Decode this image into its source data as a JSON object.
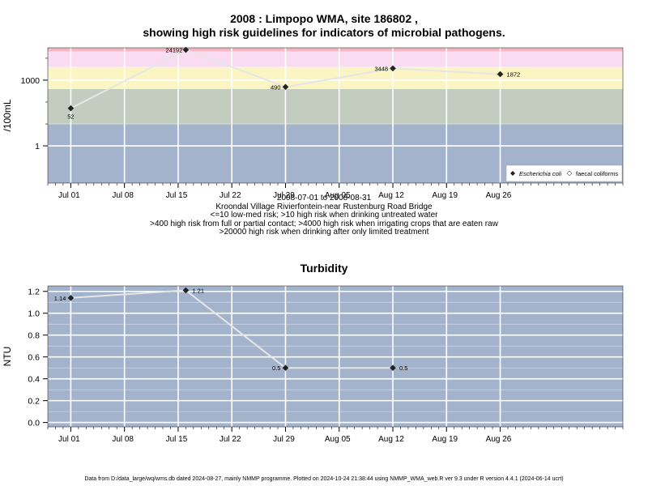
{
  "chart1": {
    "title_line1": "2008 : Limpopo WMA, site 186802 ,",
    "title_line2": "showing high risk guidelines for indicators of microbial pathogens.",
    "ylabel": "/100mL",
    "caption_lines": [
      "2008-07-01 to 2008-08-31",
      "Kroondal Village Rivierfontein-near Rustenburg Road Bridge",
      "<=10 low-med risk; >10 high risk when drinking untreated water",
      ">400 high risk from full or partial contact; >4000 high risk when irrigating crops that are eaten raw",
      ">20000 high risk when drinking after only limited treatment"
    ],
    "legend": {
      "series1": "Escherichia coli",
      "series2": "faecal coliforms"
    }
  },
  "chart2": {
    "title": "Turbidity",
    "ylabel": "NTU"
  },
  "footer": "Data from D:/data_large/wq/wms.db dated 2024-08-27, mainly NMMP programme. Plotted on 2024-10-24 21:38:44 using NMMP_WMA_web.R ver 9.3 under R version 4.4.1 (2024-06-14 ucrt)",
  "colors": {
    "background": "#a3b3cc",
    "band_low": "#c2cdbf",
    "band_yellow": "#fbf5c4",
    "band_pink": "#f9dcf2",
    "band_red": "#f6b5c5",
    "grid": "#ffffff",
    "line": "#e6e6e6",
    "marker": "#222222"
  },
  "chart_data": [
    {
      "type": "line",
      "title": "2008 : Limpopo WMA, site 186802 , showing high risk guidelines for indicators of microbial pathogens.",
      "ylabel": "/100mL",
      "yscale": "log10",
      "ylim": [
        0.02,
        30000
      ],
      "yticks": [
        1,
        1000
      ],
      "ytick_labels": [
        "1",
        "1000"
      ],
      "xlim": [
        "2008-06-28",
        "2008-09-11"
      ],
      "xticks": [
        "2008-07-01",
        "2008-07-08",
        "2008-07-15",
        "2008-07-22",
        "2008-07-29",
        "2008-08-05",
        "2008-08-12",
        "2008-08-19",
        "2008-08-26"
      ],
      "xtick_labels": [
        "Jul 01",
        "Jul 08",
        "Jul 15",
        "Jul 22",
        "Jul 29",
        "Aug 05",
        "Aug 12",
        "Aug 19",
        "Aug 26"
      ],
      "x": [
        "2008-07-01",
        "2008-07-16",
        "2008-07-29",
        "2008-08-12",
        "2008-08-26"
      ],
      "series": [
        {
          "name": "Escherichia coli",
          "values": [
            52,
            24192,
            490,
            3448,
            1872
          ],
          "labels": [
            "52",
            "24192",
            "490",
            "3448",
            "1872"
          ]
        }
      ],
      "bands": [
        {
          "from": 0.02,
          "to": 10
        },
        {
          "from": 10,
          "to": 400
        },
        {
          "from": 400,
          "to": 4000
        },
        {
          "from": 4000,
          "to": 20000
        },
        {
          "from": 20000,
          "to": 30000
        }
      ],
      "legend_position": "bottom-right",
      "grid": true
    },
    {
      "type": "line",
      "title": "Turbidity",
      "ylabel": "NTU",
      "ylim": [
        -0.04,
        1.25
      ],
      "yticks": [
        0.0,
        0.2,
        0.4,
        0.6,
        0.8,
        1.0,
        1.2
      ],
      "ytick_labels": [
        "0.0",
        "0.2",
        "0.4",
        "0.6",
        "0.8",
        "1.0",
        "1.2"
      ],
      "xlim": [
        "2008-06-28",
        "2008-09-11"
      ],
      "xticks": [
        "2008-07-01",
        "2008-07-08",
        "2008-07-15",
        "2008-07-22",
        "2008-07-29",
        "2008-08-05",
        "2008-08-12",
        "2008-08-19",
        "2008-08-26"
      ],
      "xtick_labels": [
        "Jul 01",
        "Jul 08",
        "Jul 15",
        "Jul 22",
        "Jul 29",
        "Aug 05",
        "Aug 12",
        "Aug 19",
        "Aug 26"
      ],
      "x": [
        "2008-07-01",
        "2008-07-16",
        "2008-07-29",
        "2008-08-12"
      ],
      "series": [
        {
          "name": "",
          "values": [
            1.14,
            1.21,
            0.5,
            0.5
          ],
          "labels": [
            "1.14",
            "1.21",
            "0.5",
            "0.5"
          ]
        }
      ],
      "grid": true
    }
  ]
}
